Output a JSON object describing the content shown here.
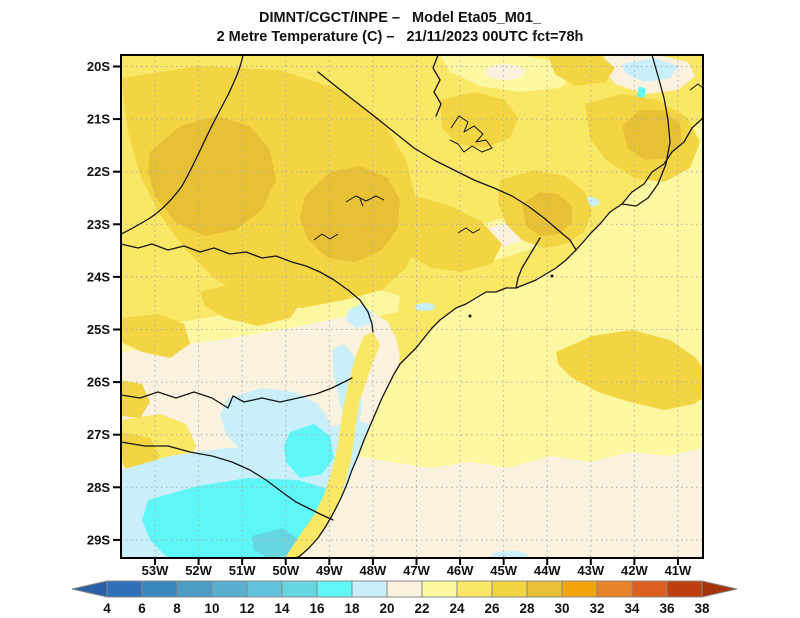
{
  "title": {
    "line1": "DIMNT/CGCT/INPE –   Model Eta05_M01_",
    "line2": "2 Metre Temperature (C) –   21/11/2023 00UTC fct=78h"
  },
  "map": {
    "lat_labels": [
      "20S",
      "21S",
      "22S",
      "23S",
      "24S",
      "25S",
      "26S",
      "27S",
      "28S",
      "29S"
    ],
    "lon_labels": [
      "53W",
      "52W",
      "51W",
      "50W",
      "49W",
      "48W",
      "47W",
      "46W",
      "45W",
      "44W",
      "43W",
      "42W",
      "41W"
    ]
  },
  "colorbar": {
    "values": [
      "4",
      "6",
      "8",
      "10",
      "12",
      "14",
      "16",
      "18",
      "20",
      "22",
      "24",
      "26",
      "28",
      "30",
      "32",
      "34",
      "36",
      "38"
    ],
    "segment_keys": [
      "c4_6",
      "c6_8",
      "c8_10",
      "c10_12",
      "c12_14",
      "c14_16",
      "c16_18",
      "c18_20",
      "c20_22",
      "c22_24",
      "c24_26",
      "c26_28",
      "c28_30",
      "c30_32",
      "c32_34",
      "c34_36",
      "c36_38"
    ]
  },
  "palette": {
    "c4_6": "#3070B8",
    "c6_8": "#3C86BE",
    "c8_10": "#4C9CC6",
    "c10_12": "#58AFD0",
    "c12_14": "#62C2DA",
    "c14_16": "#66D6E0",
    "c16_18": "#5FF6F8",
    "c18_20": "#C9F0FA",
    "c20_22": "#FAF2DE",
    "c22_24": "#FCF8A2",
    "c24_26": "#F9E765",
    "c26_28": "#F3D544",
    "c28_30": "#E7C035",
    "c30_32": "#F3A50C",
    "c32_34": "#E8832A",
    "c34_36": "#DE5E1F",
    "c36_38": "#BF3E0E",
    "arrow_low": "#2B5FA6",
    "arrow_high": "#A5330A",
    "grid": "#ADADAD",
    "frame": "#000000",
    "ocean_blue_spot": "#BEE8F2"
  }
}
